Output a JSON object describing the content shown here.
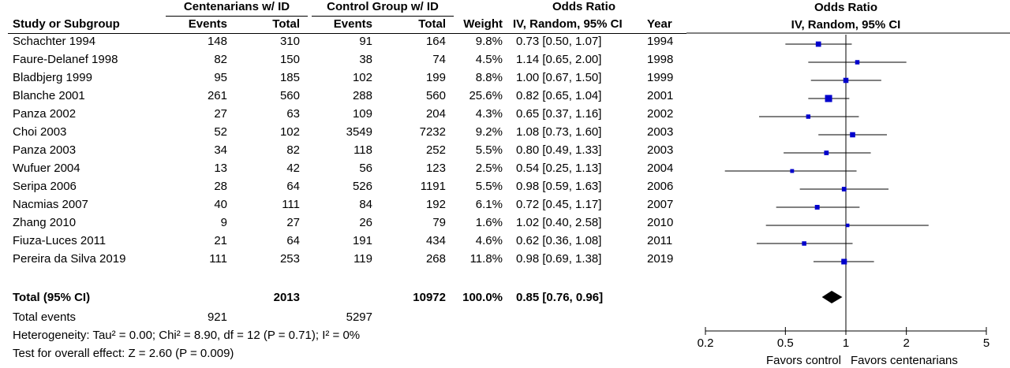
{
  "headers": {
    "group_centenarians": "Centenarians w/ ID",
    "group_control": "Control Group w/ ID",
    "group_or": "Odds Ratio",
    "study": "Study or Subgroup",
    "events": "Events",
    "total": "Total",
    "weight": "Weight",
    "or_method": "IV, Random, 95% CI",
    "year": "Year",
    "plot_title": "Odds Ratio",
    "plot_method": "IV, Random, 95% CI"
  },
  "studies": [
    {
      "study": "Schachter 1994",
      "c_events": "148",
      "c_total": "310",
      "k_events": "91",
      "k_total": "164",
      "weight": "9.8%",
      "ci_text": "0.73 [0.50, 1.07]",
      "year": "1994"
    },
    {
      "study": "Faure-Delanef 1998",
      "c_events": "82",
      "c_total": "150",
      "k_events": "38",
      "k_total": "74",
      "weight": "4.5%",
      "ci_text": "1.14 [0.65, 2.00]",
      "year": "1998"
    },
    {
      "study": "Bladbjerg 1999",
      "c_events": "95",
      "c_total": "185",
      "k_events": "102",
      "k_total": "199",
      "weight": "8.8%",
      "ci_text": "1.00 [0.67, 1.50]",
      "year": "1999"
    },
    {
      "study": "Blanche 2001",
      "c_events": "261",
      "c_total": "560",
      "k_events": "288",
      "k_total": "560",
      "weight": "25.6%",
      "ci_text": "0.82 [0.65, 1.04]",
      "year": "2001"
    },
    {
      "study": "Panza 2002",
      "c_events": "27",
      "c_total": "63",
      "k_events": "109",
      "k_total": "204",
      "weight": "4.3%",
      "ci_text": "0.65 [0.37, 1.16]",
      "year": "2002"
    },
    {
      "study": "Choi 2003",
      "c_events": "52",
      "c_total": "102",
      "k_events": "3549",
      "k_total": "7232",
      "weight": "9.2%",
      "ci_text": "1.08 [0.73, 1.60]",
      "year": "2003"
    },
    {
      "study": "Panza 2003",
      "c_events": "34",
      "c_total": "82",
      "k_events": "118",
      "k_total": "252",
      "weight": "5.5%",
      "ci_text": "0.80 [0.49, 1.33]",
      "year": "2003"
    },
    {
      "study": "Wufuer 2004",
      "c_events": "13",
      "c_total": "42",
      "k_events": "56",
      "k_total": "123",
      "weight": "2.5%",
      "ci_text": "0.54 [0.25, 1.13]",
      "year": "2004"
    },
    {
      "study": "Seripa 2006",
      "c_events": "28",
      "c_total": "64",
      "k_events": "526",
      "k_total": "1191",
      "weight": "5.5%",
      "ci_text": "0.98 [0.59, 1.63]",
      "year": "2006"
    },
    {
      "study": "Nacmias 2007",
      "c_events": "40",
      "c_total": "111",
      "k_events": "84",
      "k_total": "192",
      "weight": "6.1%",
      "ci_text": "0.72 [0.45, 1.17]",
      "year": "2007"
    },
    {
      "study": "Zhang 2010",
      "c_events": "9",
      "c_total": "27",
      "k_events": "26",
      "k_total": "79",
      "weight": "1.6%",
      "ci_text": "1.02 [0.40, 2.58]",
      "year": "2010"
    },
    {
      "study": "Fiuza-Luces 2011",
      "c_events": "21",
      "c_total": "64",
      "k_events": "191",
      "k_total": "434",
      "weight": "4.6%",
      "ci_text": "0.62 [0.36, 1.08]",
      "year": "2011"
    },
    {
      "study": "Pereira da Silva 2019",
      "c_events": "111",
      "c_total": "253",
      "k_events": "119",
      "k_total": "268",
      "weight": "11.8%",
      "ci_text": "0.98 [0.69, 1.38]",
      "year": "2019"
    }
  ],
  "total_row": {
    "label": "Total (95% CI)",
    "c_total": "2013",
    "k_total": "10972",
    "weight": "100.0%",
    "ci_text": "0.85 [0.76, 0.96]"
  },
  "events_row": {
    "label": "Total events",
    "c_events": "921",
    "k_events": "5297"
  },
  "heterogeneity": "Heterogeneity: Tau² = 0.00; Chi² = 8.90, df = 12 (P = 0.71); I² = 0%",
  "overall_effect": "Test for overall effect: Z = 2.60 (P = 0.009)",
  "colors": {
    "marker": "#0000cc",
    "diamond": "#000000",
    "line": "#000000"
  },
  "chart_data": {
    "type": "forest",
    "scale": "log",
    "xlim": [
      0.2,
      5
    ],
    "ticks": [
      {
        "value": 0.2,
        "label": "0.2"
      },
      {
        "value": 0.5,
        "label": "0.5"
      },
      {
        "value": 1,
        "label": "1"
      },
      {
        "value": 2,
        "label": "2"
      },
      {
        "value": 5,
        "label": "5"
      }
    ],
    "reference_line": 1,
    "favors_left": "Favors control",
    "favors_right": "Favors centenarians",
    "estimates": [
      {
        "or": 0.73,
        "lo": 0.5,
        "hi": 1.07,
        "weight": 9.8
      },
      {
        "or": 1.14,
        "lo": 0.65,
        "hi": 2.0,
        "weight": 4.5
      },
      {
        "or": 1.0,
        "lo": 0.67,
        "hi": 1.5,
        "weight": 8.8
      },
      {
        "or": 0.82,
        "lo": 0.65,
        "hi": 1.04,
        "weight": 25.6
      },
      {
        "or": 0.65,
        "lo": 0.37,
        "hi": 1.16,
        "weight": 4.3
      },
      {
        "or": 1.08,
        "lo": 0.73,
        "hi": 1.6,
        "weight": 9.2
      },
      {
        "or": 0.8,
        "lo": 0.49,
        "hi": 1.33,
        "weight": 5.5
      },
      {
        "or": 0.54,
        "lo": 0.25,
        "hi": 1.13,
        "weight": 2.5
      },
      {
        "or": 0.98,
        "lo": 0.59,
        "hi": 1.63,
        "weight": 5.5
      },
      {
        "or": 0.72,
        "lo": 0.45,
        "hi": 1.17,
        "weight": 6.1
      },
      {
        "or": 1.02,
        "lo": 0.4,
        "hi": 2.58,
        "weight": 1.6
      },
      {
        "or": 0.62,
        "lo": 0.36,
        "hi": 1.08,
        "weight": 4.6
      },
      {
        "or": 0.98,
        "lo": 0.69,
        "hi": 1.38,
        "weight": 11.8
      }
    ],
    "pooled": {
      "or": 0.85,
      "lo": 0.76,
      "hi": 0.96
    }
  }
}
